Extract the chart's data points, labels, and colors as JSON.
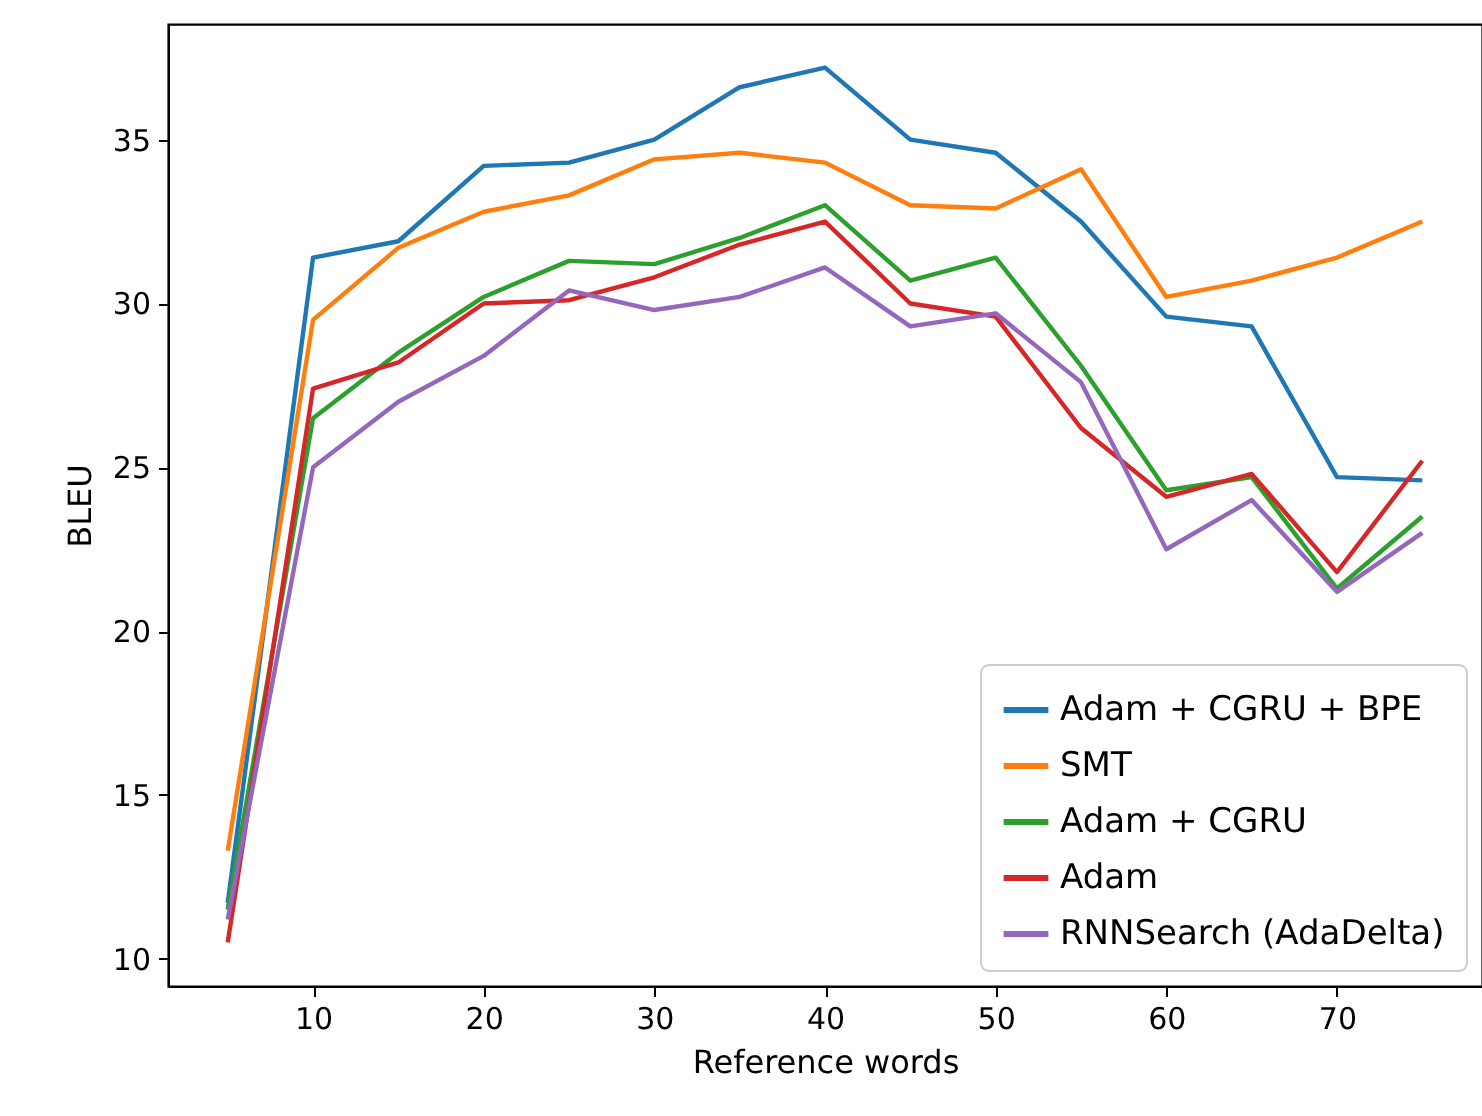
{
  "chart_data": {
    "type": "line",
    "xlabel": "Reference words",
    "ylabel": "BLEU",
    "x": [
      5,
      10,
      15,
      20,
      25,
      30,
      35,
      40,
      45,
      50,
      55,
      60,
      65,
      70,
      75
    ],
    "series": [
      {
        "name": "Adam + CGRU + BPE",
        "color": "#1f77b4",
        "values": [
          11.7,
          31.4,
          31.9,
          34.2,
          34.3,
          35.0,
          36.6,
          37.2,
          35.0,
          34.6,
          32.5,
          29.6,
          29.3,
          24.7,
          24.6
        ]
      },
      {
        "name": "SMT",
        "color": "#ff7f0e",
        "values": [
          13.3,
          29.5,
          31.7,
          32.8,
          33.3,
          34.4,
          34.6,
          34.3,
          33.0,
          32.9,
          34.1,
          30.2,
          30.7,
          31.4,
          32.5
        ]
      },
      {
        "name": "Adam + CGRU",
        "color": "#2ca02c",
        "values": [
          11.5,
          26.5,
          28.5,
          30.2,
          31.3,
          31.2,
          32.0,
          33.0,
          30.7,
          31.4,
          28.1,
          24.3,
          24.7,
          21.3,
          23.5
        ]
      },
      {
        "name": "Adam",
        "color": "#d62728",
        "values": [
          10.5,
          27.4,
          28.2,
          30.0,
          30.1,
          30.8,
          31.8,
          32.5,
          30.0,
          29.6,
          26.2,
          24.1,
          24.8,
          21.8,
          25.2
        ]
      },
      {
        "name": "RNNSearch (AdaDelta)",
        "color": "#9467bd",
        "values": [
          11.2,
          25.0,
          27.0,
          28.4,
          30.4,
          29.8,
          30.2,
          31.1,
          29.3,
          29.7,
          27.6,
          22.5,
          24.0,
          21.2,
          23.0
        ]
      }
    ],
    "xlim": [
      1.5,
      78.5
    ],
    "xticks": [
      10,
      20,
      30,
      40,
      50,
      60,
      70
    ],
    "ylim": [
      9.17,
      38.53
    ],
    "yticks": [
      10,
      15,
      20,
      25,
      30,
      35
    ],
    "legend": "bottom right",
    "grid": false,
    "line_style": "solid",
    "marker": "none"
  }
}
